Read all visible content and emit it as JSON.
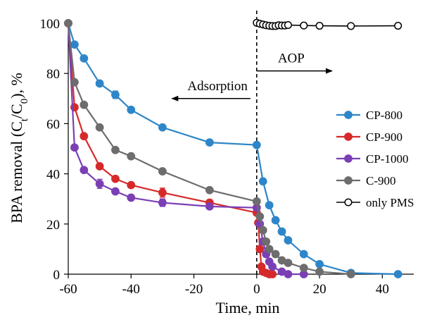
{
  "chart_data": {
    "type": "line",
    "xlabel": "Time, min",
    "ylabel_parts": [
      "BPA removal (C",
      "t",
      "/C",
      "0",
      "), %"
    ],
    "xlim": [
      -60,
      50
    ],
    "ylim": [
      0,
      100
    ],
    "xticks": [
      -60,
      -40,
      -20,
      0,
      20,
      40
    ],
    "yticks": [
      0,
      20,
      40,
      60,
      80,
      100
    ],
    "grid": false,
    "legend_position": "right",
    "annotations": [
      {
        "text": "Adsorption",
        "arrow": "left",
        "x_from": -2,
        "x_to": -27,
        "y": 70
      },
      {
        "text": "AOP",
        "arrow": "right",
        "x_from": 0,
        "x_to": 24,
        "y": 81
      }
    ],
    "vline_x": 0,
    "series": [
      {
        "name": "CP-800",
        "color": "#2e86c8",
        "filled": true,
        "points": [
          [
            -60,
            100
          ],
          [
            -58,
            91.5
          ],
          [
            -55,
            86
          ],
          [
            -50,
            76
          ],
          [
            -45,
            71.5
          ],
          [
            -40,
            65.5
          ],
          [
            -30,
            58.5
          ],
          [
            -15,
            52.5
          ],
          [
            0,
            51.5
          ],
          [
            2,
            37
          ],
          [
            4,
            27.5
          ],
          [
            6,
            21.5
          ],
          [
            8,
            17
          ],
          [
            10,
            13.5
          ],
          [
            15,
            8
          ],
          [
            20,
            4
          ],
          [
            30,
            0.5
          ],
          [
            45,
            0
          ]
        ],
        "errors": [
          [
            -45,
            1.5
          ]
        ]
      },
      {
        "name": "CP-900",
        "color": "#d62a2a",
        "filled": true,
        "points": [
          [
            -60,
            100
          ],
          [
            -58,
            66.5
          ],
          [
            -55,
            55
          ],
          [
            -50,
            43
          ],
          [
            -45,
            38
          ],
          [
            -40,
            35.5
          ],
          [
            -30,
            32.5
          ],
          [
            -15,
            28.5
          ],
          [
            0,
            24.5
          ],
          [
            0.5,
            20.5
          ],
          [
            1,
            10
          ],
          [
            1.5,
            3
          ],
          [
            2,
            1
          ],
          [
            3,
            0.5
          ],
          [
            4,
            0
          ],
          [
            5,
            0
          ]
        ],
        "errors": [
          [
            -30,
            1.8
          ],
          [
            -15,
            1.2
          ]
        ]
      },
      {
        "name": "CP-1000",
        "color": "#7b3fb5",
        "filled": true,
        "points": [
          [
            -60,
            100
          ],
          [
            -58,
            50.5
          ],
          [
            -55,
            41.5
          ],
          [
            -50,
            36
          ],
          [
            -45,
            33
          ],
          [
            -40,
            30.5
          ],
          [
            -30,
            28.5
          ],
          [
            -15,
            27
          ],
          [
            0,
            26.5
          ],
          [
            1,
            20
          ],
          [
            2,
            13
          ],
          [
            3,
            8
          ],
          [
            4,
            5
          ],
          [
            5,
            3
          ],
          [
            8,
            1
          ],
          [
            10,
            0
          ],
          [
            15,
            0
          ]
        ],
        "errors": [
          [
            -50,
            1.8
          ],
          [
            -30,
            1.5
          ]
        ]
      },
      {
        "name": "C-900",
        "color": "#6d6d6d",
        "filled": true,
        "points": [
          [
            -60,
            100
          ],
          [
            -58,
            76.5
          ],
          [
            -55,
            67.5
          ],
          [
            -50,
            58.5
          ],
          [
            -45,
            49.5
          ],
          [
            -40,
            47
          ],
          [
            -30,
            41
          ],
          [
            -15,
            33.5
          ],
          [
            0,
            29
          ],
          [
            1,
            23
          ],
          [
            2,
            17.5
          ],
          [
            3,
            13
          ],
          [
            4,
            10
          ],
          [
            6,
            8
          ],
          [
            8,
            5.5
          ],
          [
            10,
            4.5
          ],
          [
            15,
            2.5
          ],
          [
            20,
            1
          ],
          [
            30,
            0
          ]
        ],
        "errors": []
      },
      {
        "name": "only PMS",
        "color": "#000000",
        "filled": false,
        "points": [
          [
            0,
            100.2
          ],
          [
            1,
            99.8
          ],
          [
            2,
            99.5
          ],
          [
            3,
            99.2
          ],
          [
            4,
            99
          ],
          [
            5,
            98.9
          ],
          [
            6,
            98.9
          ],
          [
            7,
            99.2
          ],
          [
            8,
            99.1
          ],
          [
            9,
            99.1
          ],
          [
            10,
            99.3
          ],
          [
            15,
            99.1
          ],
          [
            20,
            99
          ],
          [
            30,
            98.9
          ],
          [
            45,
            99
          ]
        ],
        "errors": []
      }
    ]
  }
}
